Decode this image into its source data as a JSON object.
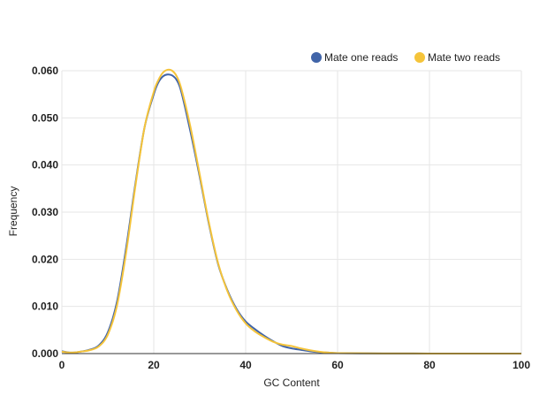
{
  "chart_data": {
    "type": "line",
    "title": "",
    "xlabel": "GC Content",
    "ylabel": "Frequency",
    "xlim": [
      0,
      100
    ],
    "ylim": [
      0,
      0.06
    ],
    "x_ticks": [
      "0",
      "20",
      "40",
      "60",
      "80",
      "100"
    ],
    "y_ticks": [
      "0.000",
      "0.010",
      "0.020",
      "0.030",
      "0.040",
      "0.050",
      "0.060"
    ],
    "grid": true,
    "legend_position": "top-right",
    "x": [
      0,
      2,
      4,
      6,
      8,
      10,
      12,
      14,
      16,
      18,
      20,
      21,
      22,
      23,
      24,
      25,
      26,
      28,
      30,
      32,
      34,
      36,
      38,
      40,
      42,
      44,
      46,
      48,
      50,
      52,
      54,
      56,
      58,
      60,
      65,
      70,
      80,
      90,
      100
    ],
    "series": [
      {
        "name": "Mate one reads",
        "color": "#4064a8",
        "values": [
          0.0005,
          0.0002,
          0.0004,
          0.0008,
          0.0017,
          0.0045,
          0.011,
          0.0225,
          0.036,
          0.048,
          0.055,
          0.0575,
          0.0588,
          0.0592,
          0.059,
          0.058,
          0.0555,
          0.047,
          0.0375,
          0.0275,
          0.019,
          0.0135,
          0.0095,
          0.0068,
          0.0052,
          0.0038,
          0.0026,
          0.0016,
          0.0011,
          0.0008,
          0.0005,
          0.0003,
          0.0002,
          0.0001,
          5e-05,
          3e-05,
          1e-05,
          0,
          0
        ]
      },
      {
        "name": "Mate two reads",
        "color": "#f5c43a",
        "values": [
          0.0004,
          0.0002,
          0.0004,
          0.0007,
          0.0015,
          0.004,
          0.0102,
          0.0215,
          0.0355,
          0.048,
          0.0555,
          0.058,
          0.0596,
          0.0602,
          0.06,
          0.0588,
          0.0562,
          0.048,
          0.038,
          0.0278,
          0.0192,
          0.0133,
          0.0092,
          0.0064,
          0.0047,
          0.0035,
          0.0025,
          0.0019,
          0.0016,
          0.0011,
          0.0007,
          0.0004,
          0.0002,
          0.0001,
          6e-05,
          3e-05,
          1e-05,
          0,
          0
        ]
      }
    ]
  }
}
